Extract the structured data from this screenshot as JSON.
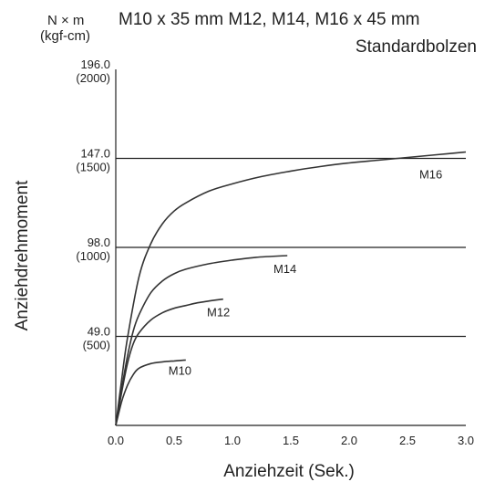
{
  "chart_data": {
    "type": "line",
    "title": "M10 x 35 mm M12, M14, M16 x 45 mm",
    "subtitle": "Standardbolzen",
    "unit_label": "N × m",
    "unit_label_alt": "(kgf-cm)",
    "xlabel": "Anziehzeit (Sek.)",
    "ylabel": "Anziehdrehmoment",
    "xlim": [
      0,
      3.0
    ],
    "ylim": [
      0,
      196.0
    ],
    "grid": true,
    "x_ticks": [
      {
        "value": 0.0,
        "label": "0.0"
      },
      {
        "value": 0.5,
        "label": "0.5"
      },
      {
        "value": 1.0,
        "label": "1.0"
      },
      {
        "value": 1.5,
        "label": "1.5"
      },
      {
        "value": 2.0,
        "label": "2.0"
      },
      {
        "value": 2.5,
        "label": "2.5"
      },
      {
        "value": 3.0,
        "label": "3.0"
      }
    ],
    "y_ticks": [
      {
        "value": 49.0,
        "label": "49.0",
        "alt": "(500)"
      },
      {
        "value": 98.0,
        "label": "98.0",
        "alt": "(1000)"
      },
      {
        "value": 147.0,
        "label": "147.0",
        "alt": "(1500)"
      },
      {
        "value": 196.0,
        "label": "196.0",
        "alt": "(2000)"
      }
    ],
    "series": [
      {
        "name": "M10",
        "label_at": [
          0.55,
          28
        ],
        "x": [
          0,
          0.05,
          0.1,
          0.15,
          0.2,
          0.3,
          0.4,
          0.5,
          0.6
        ],
        "y": [
          0,
          13,
          22,
          28,
          31.5,
          34,
          35,
          35.5,
          36
        ]
      },
      {
        "name": "M12",
        "label_at": [
          0.88,
          60
        ],
        "x": [
          0,
          0.05,
          0.1,
          0.15,
          0.2,
          0.3,
          0.4,
          0.5,
          0.6,
          0.7,
          0.8,
          0.92
        ],
        "y": [
          0,
          18,
          34,
          45,
          51,
          58,
          62,
          64.5,
          66,
          67.5,
          68.5,
          69.5
        ]
      },
      {
        "name": "M14",
        "label_at": [
          1.45,
          84
        ],
        "x": [
          0,
          0.05,
          0.1,
          0.15,
          0.2,
          0.3,
          0.4,
          0.5,
          0.6,
          0.8,
          1.0,
          1.2,
          1.47
        ],
        "y": [
          0,
          20,
          38,
          52,
          61,
          73,
          79.5,
          83.5,
          86,
          89,
          91,
          92.5,
          93.5
        ]
      },
      {
        "name": "M16",
        "label_at": [
          2.7,
          136
        ],
        "x": [
          0,
          0.05,
          0.1,
          0.2,
          0.3,
          0.4,
          0.5,
          0.6,
          0.8,
          1.0,
          1.25,
          1.5,
          1.75,
          2.0,
          2.25,
          2.5,
          2.75,
          3.0
        ],
        "y": [
          0,
          25,
          48,
          82,
          100,
          111,
          118,
          122.5,
          129,
          133,
          137,
          140,
          142.5,
          144.5,
          146,
          147.5,
          149,
          150.5
        ]
      }
    ]
  }
}
